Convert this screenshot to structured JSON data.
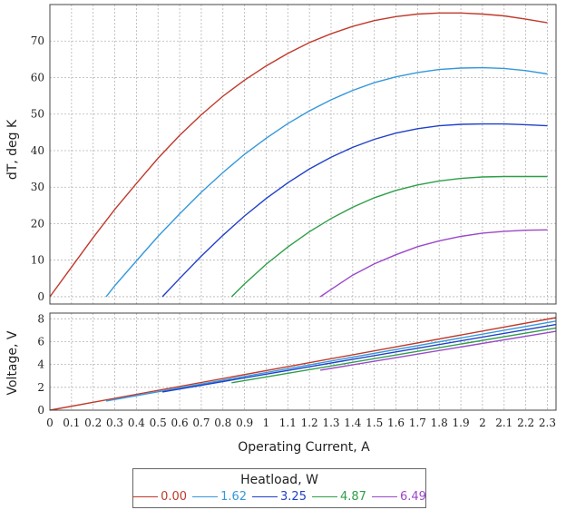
{
  "chart_data": [
    {
      "type": "line",
      "ylabel": "dT, deg K",
      "ylim": [
        -2,
        80
      ],
      "yticks": [
        "0",
        "10",
        "20",
        "30",
        "40",
        "50",
        "60",
        "70"
      ],
      "grid": true,
      "series": [
        {
          "name": "0.00",
          "color": "#c0392b",
          "points": [
            [
              0.0,
              0.0
            ],
            [
              0.1,
              8.1
            ],
            [
              0.2,
              16.2
            ],
            [
              0.3,
              23.9
            ],
            [
              0.4,
              31.0
            ],
            [
              0.5,
              37.9
            ],
            [
              0.6,
              44.2
            ],
            [
              0.7,
              49.8
            ],
            [
              0.8,
              54.9
            ],
            [
              0.9,
              59.3
            ],
            [
              1.0,
              63.2
            ],
            [
              1.1,
              66.6
            ],
            [
              1.2,
              69.6
            ],
            [
              1.3,
              72.0
            ],
            [
              1.4,
              74.0
            ],
            [
              1.5,
              75.6
            ],
            [
              1.6,
              76.7
            ],
            [
              1.7,
              77.4
            ],
            [
              1.8,
              77.7
            ],
            [
              1.9,
              77.7
            ],
            [
              2.0,
              77.4
            ],
            [
              2.1,
              76.9
            ],
            [
              2.2,
              76.0
            ],
            [
              2.3,
              75.0
            ]
          ]
        },
        {
          "name": "1.62",
          "color": "#3498db",
          "points": [
            [
              0.26,
              0.0
            ],
            [
              0.3,
              3.0
            ],
            [
              0.4,
              9.8
            ],
            [
              0.5,
              16.5
            ],
            [
              0.6,
              22.7
            ],
            [
              0.7,
              28.6
            ],
            [
              0.8,
              34.0
            ],
            [
              0.9,
              39.0
            ],
            [
              1.0,
              43.4
            ],
            [
              1.1,
              47.4
            ],
            [
              1.2,
              50.9
            ],
            [
              1.3,
              53.9
            ],
            [
              1.4,
              56.5
            ],
            [
              1.5,
              58.6
            ],
            [
              1.6,
              60.2
            ],
            [
              1.7,
              61.4
            ],
            [
              1.8,
              62.2
            ],
            [
              1.9,
              62.6
            ],
            [
              2.0,
              62.7
            ],
            [
              2.1,
              62.5
            ],
            [
              2.2,
              61.9
            ],
            [
              2.3,
              61.0
            ]
          ]
        },
        {
          "name": "3.25",
          "color": "#2040c8",
          "points": [
            [
              0.52,
              0.0
            ],
            [
              0.6,
              5.0
            ],
            [
              0.7,
              11.1
            ],
            [
              0.8,
              16.8
            ],
            [
              0.9,
              22.1
            ],
            [
              1.0,
              26.9
            ],
            [
              1.1,
              31.2
            ],
            [
              1.2,
              35.0
            ],
            [
              1.3,
              38.2
            ],
            [
              1.4,
              40.9
            ],
            [
              1.5,
              43.1
            ],
            [
              1.6,
              44.8
            ],
            [
              1.7,
              46.0
            ],
            [
              1.8,
              46.8
            ],
            [
              1.9,
              47.2
            ],
            [
              2.0,
              47.3
            ],
            [
              2.1,
              47.3
            ],
            [
              2.2,
              47.1
            ],
            [
              2.3,
              46.8
            ]
          ]
        },
        {
          "name": "4.87",
          "color": "#2e9e48",
          "points": [
            [
              0.84,
              0.0
            ],
            [
              0.9,
              3.5
            ],
            [
              1.0,
              8.9
            ],
            [
              1.1,
              13.6
            ],
            [
              1.2,
              17.8
            ],
            [
              1.3,
              21.4
            ],
            [
              1.4,
              24.5
            ],
            [
              1.5,
              27.1
            ],
            [
              1.6,
              29.1
            ],
            [
              1.7,
              30.6
            ],
            [
              1.8,
              31.7
            ],
            [
              1.9,
              32.4
            ],
            [
              2.0,
              32.8
            ],
            [
              2.1,
              32.9
            ],
            [
              2.2,
              32.9
            ],
            [
              2.3,
              32.9
            ]
          ]
        },
        {
          "name": "6.49",
          "color": "#9b48c8",
          "points": [
            [
              1.25,
              0.0
            ],
            [
              1.3,
              2.0
            ],
            [
              1.4,
              5.9
            ],
            [
              1.5,
              9.0
            ],
            [
              1.6,
              11.5
            ],
            [
              1.7,
              13.7
            ],
            [
              1.8,
              15.3
            ],
            [
              1.9,
              16.5
            ],
            [
              2.0,
              17.4
            ],
            [
              2.1,
              17.9
            ],
            [
              2.2,
              18.2
            ],
            [
              2.3,
              18.3
            ]
          ]
        }
      ]
    },
    {
      "type": "line",
      "xlabel": "Operating Current, A",
      "ylabel": "Voltage, V",
      "xlim": [
        0,
        2.34
      ],
      "ylim": [
        0,
        8.5
      ],
      "xticks": [
        "0",
        "0.1",
        "0.2",
        "0.3",
        "0.4",
        "0.5",
        "0.6",
        "0.7",
        "0.8",
        "0.9",
        "1",
        "1.1",
        "1.2",
        "1.3",
        "1.4",
        "1.5",
        "1.6",
        "1.7",
        "1.8",
        "1.9",
        "2",
        "2.1",
        "2.2",
        "2.3"
      ],
      "yticks": [
        "0",
        "2",
        "4",
        "6",
        "8"
      ],
      "grid": true,
      "series": [
        {
          "name": "0.00",
          "color": "#c0392b",
          "points": [
            [
              0.0,
              0.0
            ],
            [
              2.34,
              8.1
            ]
          ]
        },
        {
          "name": "1.62",
          "color": "#3498db",
          "points": [
            [
              0.26,
              0.8
            ],
            [
              2.34,
              7.8
            ]
          ]
        },
        {
          "name": "3.25",
          "color": "#2040c8",
          "points": [
            [
              0.52,
              1.6
            ],
            [
              2.34,
              7.5
            ]
          ]
        },
        {
          "name": "4.87",
          "color": "#2e9e48",
          "points": [
            [
              0.84,
              2.4
            ],
            [
              2.34,
              7.2
            ]
          ]
        },
        {
          "name": "6.49",
          "color": "#9b48c8",
          "points": [
            [
              1.25,
              3.5
            ],
            [
              2.34,
              6.9
            ]
          ]
        }
      ]
    }
  ],
  "legend": {
    "title": "Heatload, W",
    "placement": "bottom-center",
    "items": [
      {
        "label": "0.00",
        "color": "#c0392b"
      },
      {
        "label": "1.62",
        "color": "#3498db"
      },
      {
        "label": "3.25",
        "color": "#2040c8"
      },
      {
        "label": "4.87",
        "color": "#2e9e48"
      },
      {
        "label": "6.49",
        "color": "#9b48c8"
      }
    ]
  }
}
